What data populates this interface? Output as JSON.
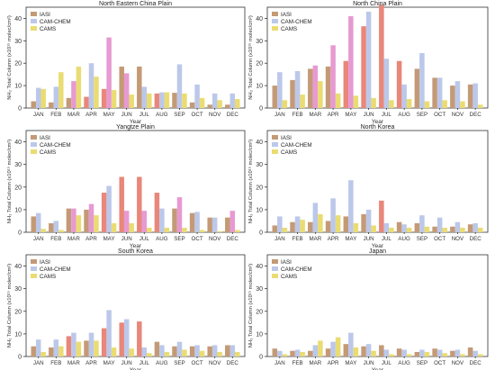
{
  "colors": {
    "IASI": "#c49a76",
    "CAM-CHEM": "#bcc8ea",
    "CAMS": "#eadc72",
    "highlight": [
      "#e8877a",
      "#e79ad2"
    ],
    "axis": "#333333",
    "grid": "#e5e5e5"
  },
  "axes_common": {
    "xlabel": "Year",
    "ylabel": "NH₃ Total Column (x10¹⁵ molec/cm²)",
    "yticks": [
      0,
      10,
      20,
      30,
      40
    ],
    "ylim": [
      0,
      45
    ],
    "months": [
      "JAN",
      "FEB",
      "MAR",
      "APR",
      "MAY",
      "JUN",
      "JUL",
      "AUG",
      "SEP",
      "OCT",
      "NOV",
      "DEC"
    ],
    "legend": [
      "IASI",
      "CAM-CHEM",
      "CAMS"
    ]
  },
  "chart_data": [
    {
      "type": "bar",
      "title": "North Eastern China Plain",
      "categories": [
        "JAN",
        "FEB",
        "MAR",
        "APR",
        "MAY",
        "JUN",
        "JUL",
        "AUG",
        "SEP",
        "OCT",
        "NOV",
        "DEC"
      ],
      "series": [
        {
          "name": "IASI",
          "values": [
            3.0,
            2.5,
            4.5,
            5.0,
            8.5,
            18.5,
            18.5,
            6.5,
            6.8,
            2.5,
            1.5,
            1.5
          ]
        },
        {
          "name": "CAM-CHEM",
          "values": [
            9.0,
            9.5,
            12.0,
            20.0,
            31.5,
            15.5,
            9.5,
            7.0,
            19.5,
            10.5,
            6.5,
            6.5
          ]
        },
        {
          "name": "CAMS",
          "values": [
            8.5,
            16.0,
            18.5,
            14.0,
            8.0,
            6.0,
            6.5,
            7.0,
            6.5,
            4.5,
            3.5,
            4.0
          ]
        }
      ],
      "highlight": [
        [
          "APR",
          "MAY",
          "AUG"
        ],
        [
          "MAR",
          "MAY",
          "JUN"
        ]
      ]
    },
    {
      "type": "bar",
      "title": "North China Plain",
      "categories": [
        "JAN",
        "FEB",
        "MAR",
        "APR",
        "MAY",
        "JUN",
        "JUL",
        "AUG",
        "SEP",
        "OCT",
        "NOV",
        "DEC"
      ],
      "series": [
        {
          "name": "IASI",
          "values": [
            10.0,
            12.5,
            17.5,
            18.5,
            21.0,
            36.5,
            46.0,
            21.0,
            17.5,
            13.5,
            10.0,
            10.5
          ]
        },
        {
          "name": "CAM-CHEM",
          "values": [
            16.0,
            16.5,
            19.0,
            28.0,
            41.0,
            43.0,
            22.0,
            10.5,
            24.5,
            13.5,
            12.0,
            11.0
          ]
        },
        {
          "name": "CAMS",
          "values": [
            3.5,
            6.0,
            12.0,
            6.5,
            5.5,
            4.5,
            3.5,
            4.0,
            3.0,
            3.5,
            3.0,
            1.5
          ]
        }
      ],
      "highlight": [
        [
          "MAY",
          "JUN",
          "JUL",
          "AUG"
        ],
        [
          "MAR",
          "APR",
          "MAY"
        ]
      ]
    },
    {
      "type": "bar",
      "title": "Yangtze Plain",
      "categories": [
        "JAN",
        "FEB",
        "MAR",
        "APR",
        "MAY",
        "JUN",
        "JUL",
        "AUG",
        "SEP",
        "OCT",
        "NOV",
        "DEC"
      ],
      "series": [
        {
          "name": "IASI",
          "values": [
            7.0,
            4.0,
            10.5,
            10.0,
            17.5,
            24.5,
            24.5,
            17.5,
            10.5,
            8.5,
            6.5,
            6.5
          ]
        },
        {
          "name": "CAM-CHEM",
          "values": [
            8.5,
            5.0,
            10.5,
            12.5,
            20.5,
            9.5,
            9.5,
            10.5,
            15.5,
            9.0,
            6.5,
            9.5
          ]
        },
        {
          "name": "CAMS",
          "values": [
            1.5,
            1.0,
            7.5,
            7.5,
            4.0,
            4.0,
            2.0,
            2.0,
            2.0,
            1.0,
            0.5,
            1.0
          ]
        }
      ],
      "highlight": [
        [
          "MAY",
          "JUN",
          "JUL",
          "AUG"
        ],
        [
          "MAR",
          "APR",
          "JUN",
          "JUL",
          "SEP",
          "DEC"
        ]
      ]
    },
    {
      "type": "bar",
      "title": "North Korea",
      "categories": [
        "JAN",
        "FEB",
        "MAR",
        "APR",
        "MAY",
        "JUN",
        "JUL",
        "AUG",
        "SEP",
        "OCT",
        "NOV",
        "DEC"
      ],
      "series": [
        {
          "name": "IASI",
          "values": [
            3.0,
            4.5,
            4.5,
            5.0,
            7.0,
            8.0,
            14.0,
            4.5,
            4.0,
            2.5,
            2.5,
            3.5
          ]
        },
        {
          "name": "CAM-CHEM",
          "values": [
            7.0,
            7.0,
            13.0,
            15.0,
            23.0,
            10.0,
            4.0,
            3.5,
            7.5,
            6.5,
            4.5,
            4.0
          ]
        },
        {
          "name": "CAMS",
          "values": [
            2.0,
            5.5,
            8.0,
            7.5,
            4.0,
            3.0,
            2.0,
            2.0,
            2.5,
            2.0,
            2.0,
            2.0
          ]
        }
      ],
      "highlight": [
        [
          "JUL"
        ],
        []
      ]
    },
    {
      "type": "bar",
      "title": "South Korea",
      "categories": [
        "JAN",
        "FEB",
        "MAR",
        "APR",
        "MAY",
        "JUN",
        "JUL",
        "AUG",
        "SEP",
        "OCT",
        "NOV",
        "DEC"
      ],
      "series": [
        {
          "name": "IASI",
          "values": [
            4.5,
            4.0,
            9.0,
            7.0,
            12.5,
            15.0,
            15.5,
            6.5,
            4.5,
            4.5,
            4.5,
            5.0
          ]
        },
        {
          "name": "CAM-CHEM",
          "values": [
            7.5,
            7.5,
            10.5,
            10.5,
            20.5,
            16.5,
            4.0,
            5.0,
            6.5,
            5.0,
            5.0,
            5.0
          ]
        },
        {
          "name": "CAMS",
          "values": [
            2.0,
            4.5,
            6.5,
            7.0,
            4.0,
            3.5,
            1.5,
            2.0,
            3.0,
            2.5,
            2.0,
            2.0
          ]
        }
      ],
      "highlight": [
        [
          "MAR",
          "MAY",
          "JUN",
          "JUL"
        ],
        []
      ]
    },
    {
      "type": "bar",
      "title": "Japan",
      "categories": [
        "JAN",
        "FEB",
        "MAR",
        "APR",
        "MAY",
        "JUN",
        "JUL",
        "AUG",
        "SEP",
        "OCT",
        "NOV",
        "DEC"
      ],
      "series": [
        {
          "name": "IASI",
          "values": [
            3.5,
            2.5,
            2.5,
            3.5,
            5.5,
            4.5,
            5.0,
            3.5,
            2.0,
            3.5,
            2.5,
            4.0
          ]
        },
        {
          "name": "CAM-CHEM",
          "values": [
            2.5,
            3.0,
            5.0,
            6.5,
            10.5,
            5.5,
            3.0,
            3.0,
            3.0,
            3.0,
            3.0,
            2.5
          ]
        },
        {
          "name": "CAMS",
          "values": [
            1.0,
            2.0,
            7.0,
            8.5,
            4.0,
            2.5,
            1.0,
            1.0,
            2.0,
            1.5,
            1.0,
            1.0
          ]
        }
      ],
      "highlight": [
        [],
        []
      ]
    }
  ]
}
